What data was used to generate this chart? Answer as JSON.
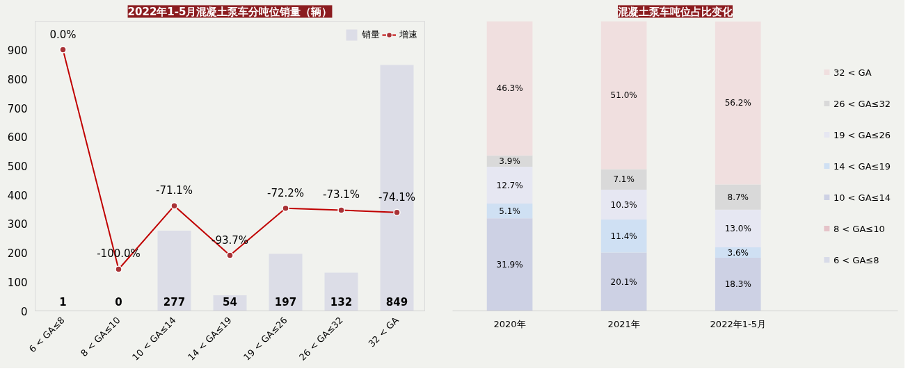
{
  "chart_data": [
    {
      "type": "bar",
      "title": "2022年1-5月混凝土泵车分吨位销量（辆）",
      "categories": [
        "6 < GA≤8",
        "8 < GA≤10",
        "10 < GA≤14",
        "14 < GA≤19",
        "19 < GA≤26",
        "26 < GA≤32",
        "32 < GA"
      ],
      "series": [
        {
          "name": "销量",
          "type": "bar",
          "color": "#dcdde7",
          "values": [
            1,
            0,
            277,
            54,
            197,
            132,
            849
          ],
          "value_labels": [
            "1",
            "0",
            "277",
            "54",
            "197",
            "132",
            "849"
          ]
        },
        {
          "name": "增速",
          "type": "line",
          "axis": "y2",
          "color": "#c00000",
          "marker": "circle",
          "values": [
            0.0,
            -100.0,
            -71.1,
            -93.7,
            -72.2,
            -73.1,
            -74.1
          ],
          "value_labels": [
            "0.0%",
            "-100.0%",
            "-71.1%",
            "-93.7%",
            "-72.2%",
            "-73.1%",
            "-74.1%"
          ]
        }
      ],
      "ylim": [
        0,
        1000
      ],
      "yticks": [
        0,
        100,
        200,
        300,
        400,
        500,
        600,
        700,
        800,
        900
      ],
      "y2lim": [
        -119,
        13
      ],
      "grid": false,
      "legend": "top right"
    },
    {
      "type": "bar",
      "title": "混凝土泵车吨位占比变化",
      "stacked": true,
      "categories": [
        "2020年",
        "2021年",
        "2022年1-5月"
      ],
      "series": [
        {
          "name": "6 < GA≤8",
          "color": "#d8dbe8",
          "values": [
            0,
            0,
            0
          ],
          "value_labels": [
            null,
            null,
            null
          ]
        },
        {
          "name": "8 < GA≤10",
          "color": "#e5c3c8",
          "values": [
            0,
            0,
            0
          ],
          "value_labels": [
            null,
            null,
            null
          ]
        },
        {
          "name": "10 < GA≤14",
          "color": "#cdd1e4",
          "values": [
            31.9,
            20.1,
            18.3
          ],
          "value_labels": [
            "31.9%",
            "20.1%",
            "18.3%"
          ]
        },
        {
          "name": "14 < GA≤19",
          "color": "#cfe0f3",
          "values": [
            5.1,
            11.4,
            3.6
          ],
          "value_labels": [
            "5.1%",
            "11.4%",
            "3.6%"
          ]
        },
        {
          "name": "19 < GA≤26",
          "color": "#e6e7f2",
          "values": [
            12.7,
            10.3,
            13.0
          ],
          "value_labels": [
            "12.7%",
            "10.3%",
            "13.0%"
          ]
        },
        {
          "name": "26 < GA≤32",
          "color": "#d9d9d9",
          "values": [
            3.9,
            7.1,
            8.7
          ],
          "value_labels": [
            "3.9%",
            "7.1%",
            "8.7%"
          ]
        },
        {
          "name": "32 < GA",
          "color": "#f0dfdf",
          "values": [
            46.3,
            51.0,
            56.2
          ],
          "value_labels": [
            "46.3%",
            "51.0%",
            "56.2%"
          ]
        }
      ],
      "tick_labels": "x",
      "grid": false,
      "legend": "right"
    }
  ]
}
